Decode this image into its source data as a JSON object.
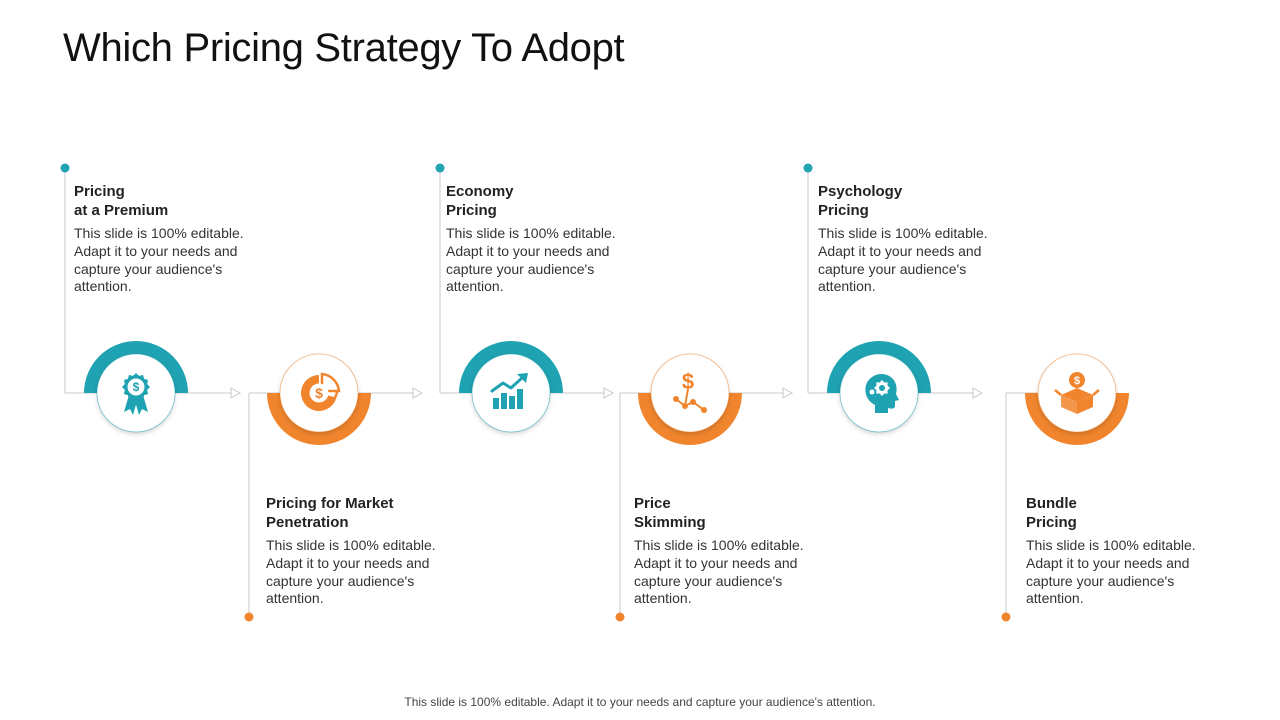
{
  "title": "Which Pricing Strategy To Adopt",
  "footer": "This slide is 100% editable. Adapt it to your needs and capture your audience's attention.",
  "colors": {
    "teal": "#1fa2b1",
    "orange": "#f0852d",
    "line": "#c8c8c8"
  },
  "steps": [
    {
      "heading_line1": "Pricing",
      "heading_line2": "at a Premium",
      "body": "This slide is 100% editable. Adapt it to your needs and capture your audience's attention.",
      "icon": "award-ribbon-icon",
      "color": "teal"
    },
    {
      "heading_line1": "Pricing for Market",
      "heading_line2": "Penetration",
      "body": "This slide is 100% editable. Adapt it to your needs and capture your audience's attention.",
      "icon": "dollar-pie-icon",
      "color": "orange"
    },
    {
      "heading_line1": "Economy",
      "heading_line2": "Pricing",
      "body": "This slide is 100% editable. Adapt it to your needs and capture your audience's attention.",
      "icon": "growth-chart-icon",
      "color": "teal"
    },
    {
      "heading_line1": "Price",
      "heading_line2": "Skimming",
      "body": "This slide is 100% editable. Adapt it to your needs and capture your audience's attention.",
      "icon": "dollar-network-icon",
      "color": "orange"
    },
    {
      "heading_line1": "Psychology",
      "heading_line2": "Pricing",
      "body": "This slide is 100% editable. Adapt it to your needs and capture your audience's attention.",
      "icon": "head-gear-icon",
      "color": "teal"
    },
    {
      "heading_line1": "Bundle",
      "heading_line2": "Pricing",
      "body": "This slide is 100% editable. Adapt it to your needs and capture your audience's attention.",
      "icon": "dollar-box-icon",
      "color": "orange"
    }
  ]
}
